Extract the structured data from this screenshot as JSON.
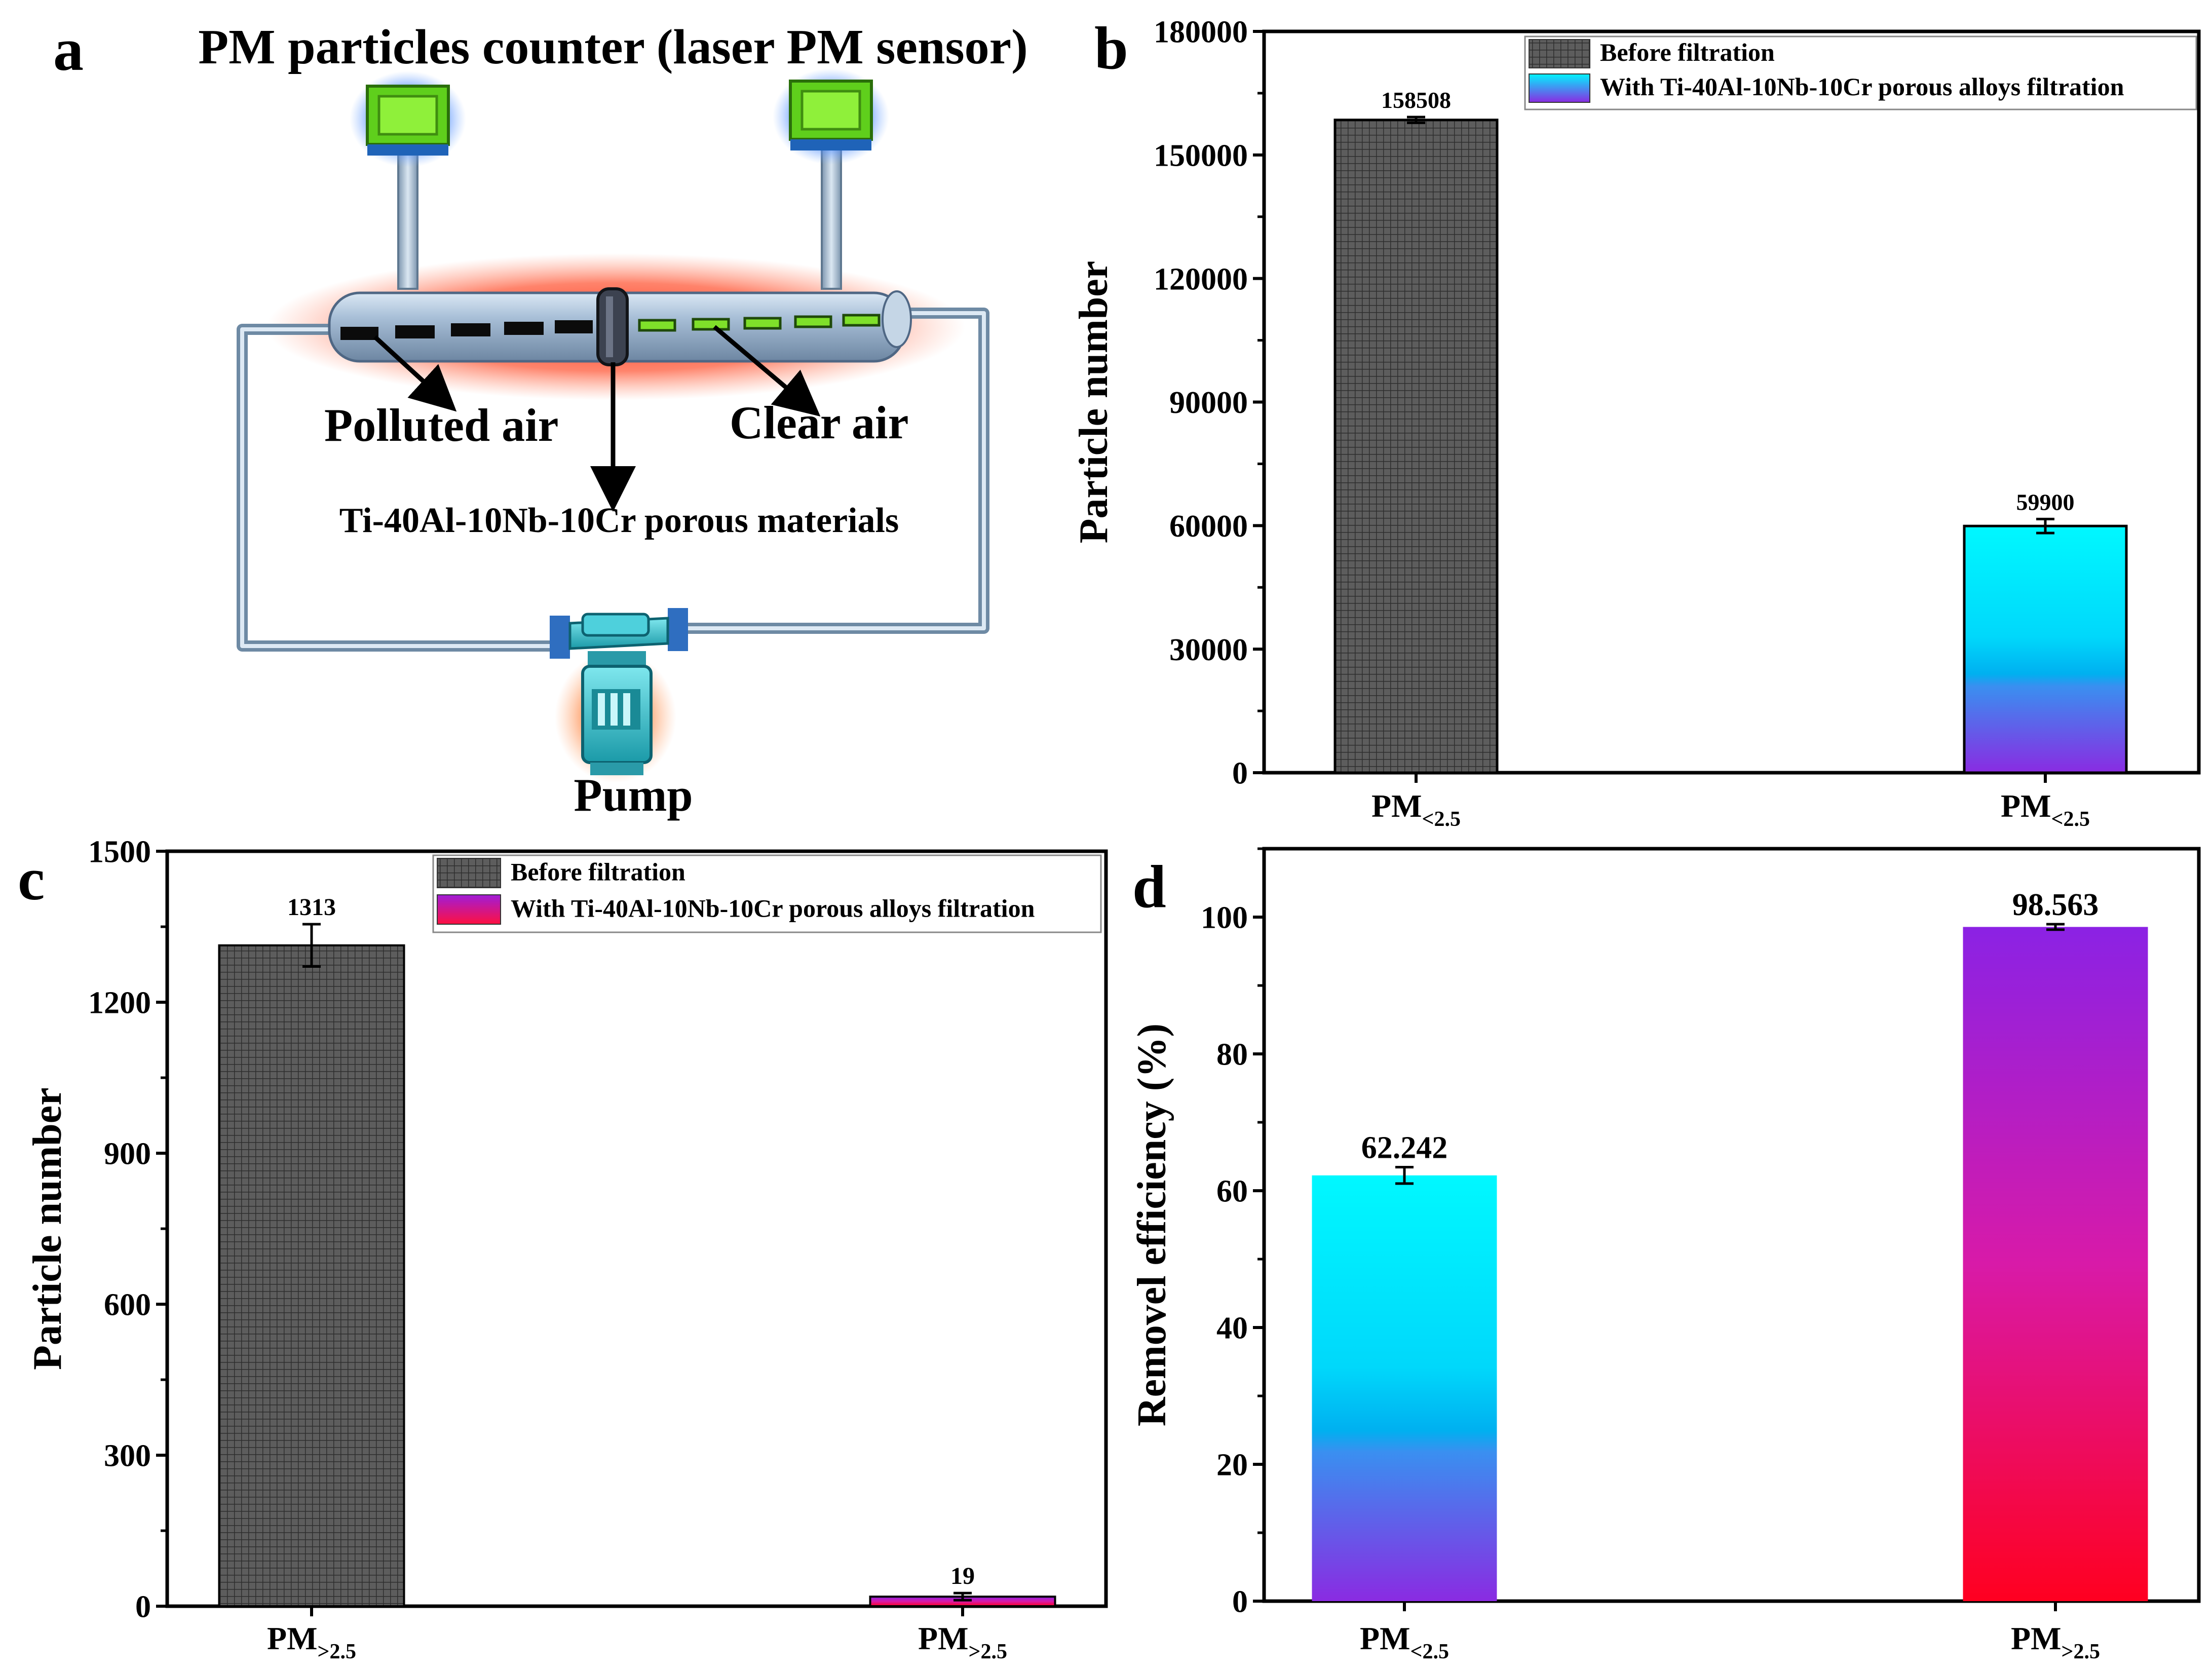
{
  "panels": {
    "a": {
      "letter": "a",
      "title": "PM particles counter (laser PM sensor)",
      "label_polluted": "Polluted air",
      "label_clear": "Clear air",
      "label_material": "Ti-40Al-10Nb-10Cr porous materials",
      "label_pump": "Pump"
    },
    "b": {
      "letter": "b"
    },
    "c": {
      "letter": "c"
    },
    "d": {
      "letter": "d"
    }
  },
  "colors": {
    "dark_bar": "#585858",
    "cyan": "#00f4ff",
    "blue_mid": "#00b2f0",
    "purple": "#8a2be2",
    "magenta": "#d41ab4",
    "red": "#ff0020",
    "tube": "#a7bfd6",
    "frame": "#6e8aa4",
    "sensor_green": "#7fe02a",
    "glow_red": "#ff4a2e"
  },
  "chart_data": [
    {
      "id": "b",
      "type": "bar",
      "categories": [
        "PM<2.5",
        "PM<2.5"
      ],
      "category_main": [
        "PM",
        "PM"
      ],
      "category_sub": [
        "<2.5",
        "<2.5"
      ],
      "values": [
        158508,
        59900
      ],
      "errors": [
        700,
        1700
      ],
      "value_labels": [
        "158508",
        "59900"
      ],
      "series_style": [
        "dark",
        "cyan-purple"
      ],
      "ylabel": "Particle number",
      "ylim": [
        0,
        180000
      ],
      "yticks": [
        0,
        30000,
        60000,
        90000,
        120000,
        150000,
        180000
      ],
      "ytick_labels": [
        "0",
        "30000",
        "60000",
        "90000",
        "120000",
        "150000",
        "180000"
      ],
      "legend": [
        "Before filtration",
        "With Ti-40Al-10Nb-10Cr porous alloys filtration"
      ],
      "legend_styles": [
        "dark",
        "cyan-purple"
      ],
      "legend_position": "top-right"
    },
    {
      "id": "c",
      "type": "bar",
      "categories": [
        "PM>2.5",
        "PM>2.5"
      ],
      "category_main": [
        "PM",
        "PM"
      ],
      "category_sub": [
        ">2.5",
        ">2.5"
      ],
      "values": [
        1313,
        19
      ],
      "errors": [
        42,
        7
      ],
      "value_labels": [
        "1313",
        "19"
      ],
      "series_style": [
        "dark",
        "purple-red"
      ],
      "ylabel": "Particle number",
      "ylim": [
        0,
        1500
      ],
      "yticks": [
        0,
        300,
        600,
        900,
        1200,
        1500
      ],
      "ytick_labels": [
        "0",
        "300",
        "600",
        "900",
        "1200",
        "1500"
      ],
      "legend": [
        "Before filtration",
        "With Ti-40Al-10Nb-10Cr porous alloys filtration"
      ],
      "legend_styles": [
        "dark",
        "purple-red"
      ],
      "legend_position": "top-right"
    },
    {
      "id": "d",
      "type": "bar",
      "categories": [
        "PM<2.5",
        "PM>2.5"
      ],
      "category_main": [
        "PM",
        "PM"
      ],
      "category_sub": [
        "<2.5",
        ">2.5"
      ],
      "values": [
        62.242,
        98.563
      ],
      "errors": [
        1.2,
        0.4
      ],
      "value_labels": [
        "62.242",
        "98.563"
      ],
      "series_style": [
        "cyan-purple",
        "purple-red"
      ],
      "ylabel": "Removel efficiency (%)",
      "ylim": [
        0,
        110
      ],
      "yticks": [
        0,
        20,
        40,
        60,
        80,
        100
      ],
      "ytick_labels": [
        "0",
        "20",
        "40",
        "60",
        "80",
        "100"
      ]
    }
  ]
}
